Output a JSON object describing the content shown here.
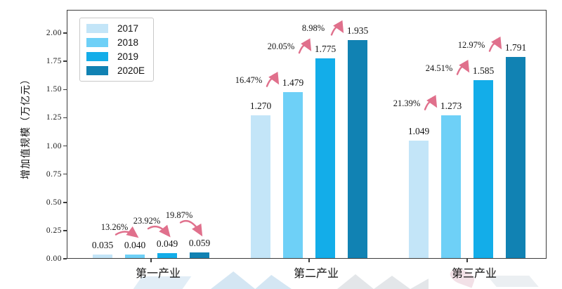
{
  "chart_data": {
    "type": "bar",
    "title": "",
    "ylabel": "增加值规模（万亿元）",
    "xlabel": "",
    "categories": [
      "第一产业",
      "第二产业",
      "第三产业"
    ],
    "series": [
      {
        "name": "2017",
        "color": "#c3e5f8",
        "values": [
          0.035,
          1.27,
          1.049
        ]
      },
      {
        "name": "2018",
        "color": "#6ed0f7",
        "values": [
          0.04,
          1.479,
          1.273
        ]
      },
      {
        "name": "2019",
        "color": "#13ade9",
        "values": [
          0.049,
          1.775,
          1.585
        ]
      },
      {
        "name": "2020E",
        "color": "#1182b3",
        "values": [
          0.059,
          1.935,
          1.791
        ]
      }
    ],
    "value_labels": [
      [
        "0.035",
        "0.040",
        "0.049",
        "0.059"
      ],
      [
        "1.270",
        "1.479",
        "1.775",
        "1.935"
      ],
      [
        "1.049",
        "1.273",
        "1.585",
        "1.791"
      ]
    ],
    "growth_labels": [
      [
        "13.26%",
        "23.92%",
        "19.87%"
      ],
      [
        "16.47%",
        "20.05%",
        "8.98%"
      ],
      [
        "21.39%",
        "24.51%",
        "12.97%"
      ]
    ],
    "y_ticks": [
      "0.00",
      "0.25",
      "0.50",
      "0.75",
      "1.00",
      "1.25",
      "1.50",
      "1.75",
      "2.00"
    ],
    "ylim": [
      0,
      2.2
    ],
    "grid": false,
    "legend_position": "upper-left",
    "annotation_arrow_color": "#e0708c",
    "axis_color": "#3c3c3c",
    "text_color": "#1a1a1a"
  }
}
